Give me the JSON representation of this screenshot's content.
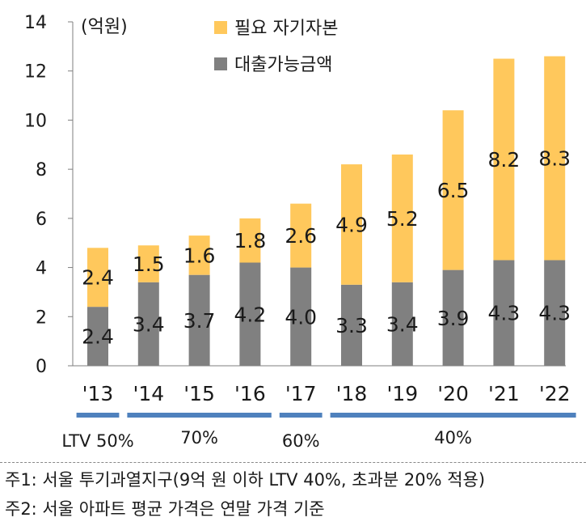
{
  "chart_data": {
    "type": "bar",
    "stacked": true,
    "unit_label": "(억원)",
    "categories": [
      "'13",
      "'14",
      "'15",
      "'16",
      "'17",
      "'18",
      "'19",
      "'20",
      "'21",
      "'22"
    ],
    "series": [
      {
        "name": "대출가능금액",
        "color": "#808080",
        "values": [
          2.4,
          3.4,
          3.7,
          4.2,
          4.0,
          3.3,
          3.4,
          3.9,
          4.3,
          4.3
        ],
        "labels": [
          "2.4",
          "3.4",
          "3.7",
          "4.2",
          "4.0",
          "3.3",
          "3.4",
          "3.9",
          "4.3",
          "4.3"
        ]
      },
      {
        "name": "필요 자기자본",
        "color": "#FFC85C",
        "values": [
          2.4,
          1.5,
          1.6,
          1.8,
          2.6,
          4.9,
          5.2,
          6.5,
          8.2,
          8.3
        ],
        "labels": [
          "2.4",
          "1.5",
          "1.6",
          "1.8",
          "2.6",
          "4.9",
          "5.2",
          "6.5",
          "8.2",
          "8.3"
        ]
      }
    ],
    "ylim": [
      0,
      14
    ],
    "yticks": [
      0,
      2,
      4,
      6,
      8,
      10,
      12,
      14
    ],
    "legend_position": "top",
    "ltv_groups": [
      {
        "label": "LTV 50%",
        "from": 0,
        "to": 0
      },
      {
        "label": "70%",
        "from": 1,
        "to": 3
      },
      {
        "label": "60%",
        "from": 4,
        "to": 4
      },
      {
        "label": "40%",
        "from": 5,
        "to": 9
      }
    ],
    "ltv_bar_color": "#4F81BD",
    "axis_color": "#7f7f7f"
  },
  "notes": [
    "주1: 서울 투기과열지구(9억 원 이하 LTV 40%, 초과분 20% 적용)",
    "주2: 서울 아파트 평균 가격은 연말 가격 기준"
  ]
}
